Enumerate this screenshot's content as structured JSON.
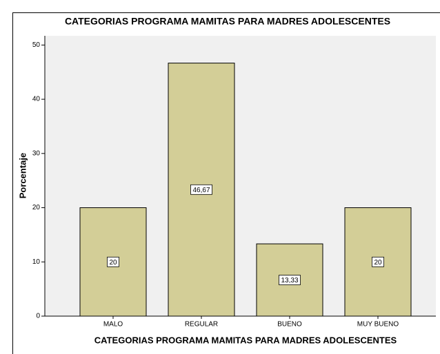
{
  "chart_data": {
    "type": "bar",
    "title": "CATEGORIAS PROGRAMA MAMITAS PARA MADRES ADOLESCENTES",
    "x_label": "CATEGORIAS PROGRAMA MAMITAS PARA MADRES ADOLESCENTES",
    "y_label": "Porcentaje",
    "categories": [
      "MALO",
      "REGULAR",
      "BUENO",
      "MUY BUENO"
    ],
    "values": [
      20,
      46.67,
      13.33,
      20
    ],
    "value_labels": [
      "20",
      "46,67",
      "13,33",
      "20"
    ],
    "color": "#d3ce97",
    "ylim": [
      0,
      51.7
    ],
    "yticks": [
      0,
      10,
      20,
      30,
      40,
      50
    ],
    "grid": false
  }
}
